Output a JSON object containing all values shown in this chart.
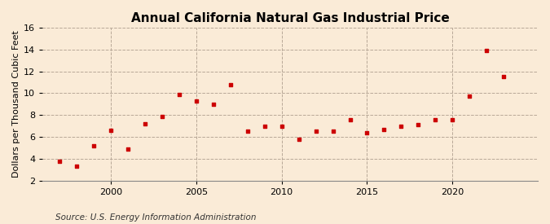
{
  "title": "Annual California Natural Gas Industrial Price",
  "ylabel": "Dollars per Thousand Cubic Feet",
  "source": "Source: U.S. Energy Information Administration",
  "background_color": "#faebd7",
  "marker_color": "#cc0000",
  "years": [
    1997,
    1998,
    1999,
    2000,
    2001,
    2002,
    2003,
    2004,
    2005,
    2006,
    2007,
    2008,
    2009,
    2010,
    2011,
    2012,
    2013,
    2014,
    2015,
    2016,
    2017,
    2018,
    2019,
    2020,
    2021,
    2022,
    2023
  ],
  "values": [
    3.8,
    3.3,
    5.2,
    6.6,
    4.9,
    7.2,
    7.9,
    9.9,
    9.3,
    9.0,
    10.8,
    6.5,
    7.0,
    7.0,
    5.8,
    6.5,
    6.5,
    7.6,
    6.4,
    6.7,
    7.0,
    7.1,
    7.6,
    7.6,
    9.7,
    13.9,
    11.5
  ],
  "xlim": [
    1996,
    2025
  ],
  "ylim": [
    2,
    16
  ],
  "yticks": [
    2,
    4,
    6,
    8,
    10,
    12,
    14,
    16
  ],
  "xticks": [
    2000,
    2005,
    2010,
    2015,
    2020
  ],
  "vlines": [
    2000,
    2005,
    2010,
    2015,
    2020
  ],
  "grid_color": "#b8a898",
  "title_fontsize": 11,
  "label_fontsize": 8,
  "source_fontsize": 7.5
}
